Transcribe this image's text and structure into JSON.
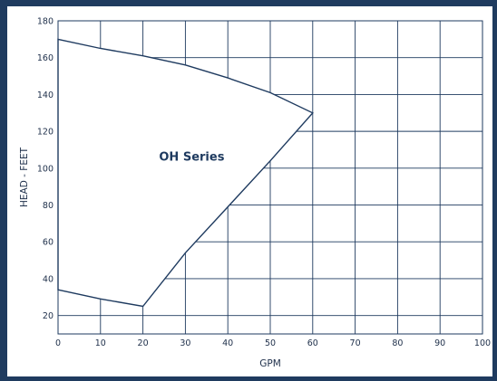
{
  "chart_data": {
    "type": "area",
    "xlabel": "GPM",
    "ylabel": "HEAD - FEET",
    "xlim": [
      0,
      100
    ],
    "ylim": [
      10,
      180
    ],
    "x_ticks": [
      "0",
      "10",
      "20",
      "30",
      "40",
      "50",
      "60",
      "70",
      "80",
      "90",
      "100"
    ],
    "y_ticks": [
      "20",
      "40",
      "60",
      "80",
      "100",
      "120",
      "140",
      "160",
      "180"
    ],
    "grid": true,
    "annotation": "OH Series",
    "series": [
      {
        "x": [
          0,
          10,
          20,
          30,
          40,
          50,
          60,
          50,
          40,
          30,
          20,
          10,
          0
        ],
        "y": [
          170,
          165,
          161,
          156,
          149,
          141,
          130,
          104,
          79,
          54,
          25,
          29,
          34
        ]
      }
    ],
    "colors": {
      "line": "#1e3a5f",
      "grid": "#1e3a5f",
      "frame": "#1f3b5f"
    }
  }
}
